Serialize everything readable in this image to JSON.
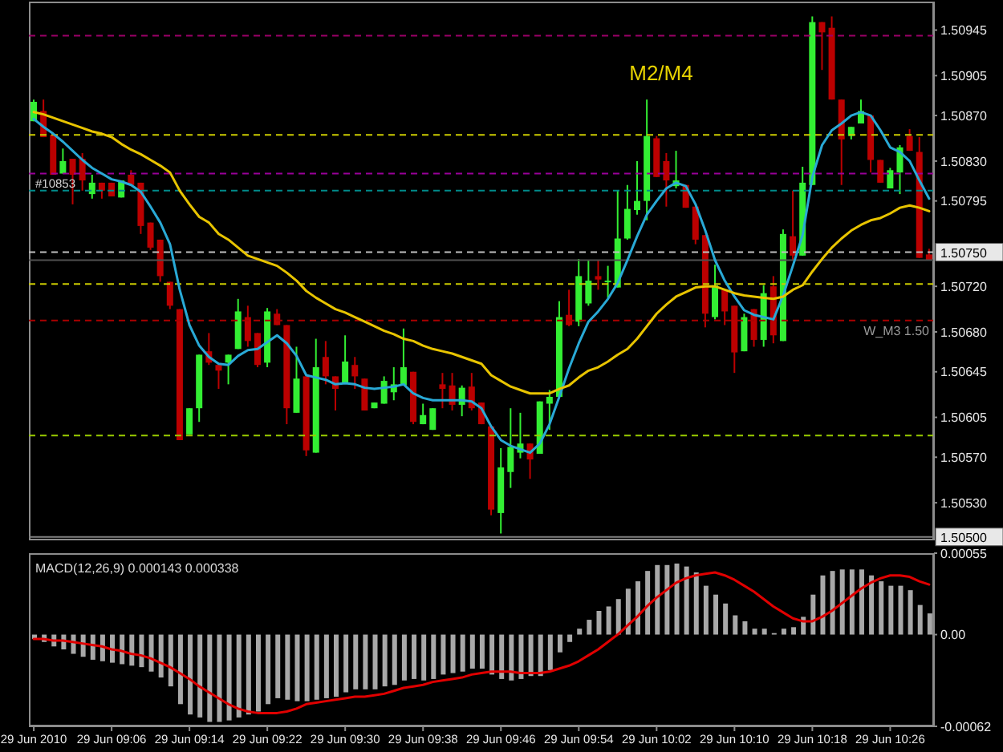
{
  "chart_data": [
    {
      "type": "candlestick",
      "tick_labels": "y",
      "ohlc": [
        [
          1.50865,
          1.50884,
          1.50865,
          1.50882
        ],
        [
          1.50874,
          1.50884,
          1.50851,
          1.50851
        ],
        [
          1.50853,
          1.50853,
          1.50818,
          1.50818
        ],
        [
          1.50819,
          1.50841,
          1.50819,
          1.5083
        ],
        [
          1.50832,
          1.50832,
          1.50792,
          1.50818
        ],
        [
          1.50832,
          1.50837,
          1.50804,
          1.50813
        ],
        [
          1.50801,
          1.50818,
          1.50797,
          1.50811
        ],
        [
          1.50811,
          1.50811,
          1.50797,
          1.50804
        ],
        [
          1.50811,
          1.50811,
          1.50799,
          1.50799
        ],
        [
          1.50798,
          1.50813,
          1.50798,
          1.50813
        ],
        [
          1.50818,
          1.50822,
          1.50809,
          1.50809
        ],
        [
          1.50811,
          1.50811,
          1.50766,
          1.50773
        ],
        [
          1.50776,
          1.50776,
          1.50752,
          1.50754
        ],
        [
          1.50761,
          1.50761,
          1.50724,
          1.50729
        ],
        [
          1.50724,
          1.50724,
          1.507,
          1.50703
        ],
        [
          1.507,
          1.507,
          1.50585,
          1.50585
        ],
        [
          1.5059,
          1.50613,
          1.5059,
          1.50613
        ],
        [
          1.50613,
          1.5066,
          1.50601,
          1.5066
        ],
        [
          1.50663,
          1.50679,
          1.50651,
          1.50653
        ],
        [
          1.50651,
          1.50651,
          1.5063,
          1.50646
        ],
        [
          1.50653,
          1.5066,
          1.50634,
          1.5066
        ],
        [
          1.50665,
          1.50709,
          1.50665,
          1.50698
        ],
        [
          1.50693,
          1.50703,
          1.50667,
          1.50672
        ],
        [
          1.50679,
          1.50679,
          1.50649,
          1.50651
        ],
        [
          1.50653,
          1.50701,
          1.50649,
          1.50698
        ],
        [
          1.50696,
          1.507,
          1.50686,
          1.50686
        ],
        [
          1.50686,
          1.50686,
          1.50599,
          1.50613
        ],
        [
          1.50609,
          1.50667,
          1.50609,
          1.50639
        ],
        [
          1.50641,
          1.50641,
          1.50571,
          1.50576
        ],
        [
          1.50574,
          1.50674,
          1.50574,
          1.50649
        ],
        [
          1.50658,
          1.50672,
          1.50634,
          1.50641
        ],
        [
          1.50641,
          1.50641,
          1.50611,
          1.5063
        ],
        [
          1.50635,
          1.50677,
          1.50635,
          1.50654
        ],
        [
          1.50651,
          1.50658,
          1.5063,
          1.50641
        ],
        [
          1.50639,
          1.50639,
          1.50611,
          1.50611
        ],
        [
          1.50613,
          1.50618,
          1.50613,
          1.50618
        ],
        [
          1.50617,
          1.50641,
          1.50617,
          1.50637
        ],
        [
          1.50627,
          1.50649,
          1.5062,
          1.50634
        ],
        [
          1.50633,
          1.50683,
          1.50633,
          1.50649
        ],
        [
          1.50645,
          1.50645,
          1.50599,
          1.50601
        ],
        [
          1.50599,
          1.50617,
          1.50599,
          1.50607
        ],
        [
          1.50594,
          1.50613,
          1.50594,
          1.50613
        ],
        [
          1.50634,
          1.50644,
          1.50613,
          1.5063
        ],
        [
          1.50633,
          1.50644,
          1.50611,
          1.50616
        ],
        [
          1.50616,
          1.50633,
          1.50606,
          1.50631
        ],
        [
          1.50632,
          1.50644,
          1.50611,
          1.50613
        ],
        [
          1.50618,
          1.50618,
          1.50599,
          1.50599
        ],
        [
          1.50597,
          1.50597,
          1.50519,
          1.50524
        ],
        [
          1.50521,
          1.50578,
          1.50503,
          1.50561
        ],
        [
          1.50557,
          1.50613,
          1.50543,
          1.50579
        ],
        [
          1.50574,
          1.50609,
          1.50569,
          1.50582
        ],
        [
          1.50582,
          1.50582,
          1.50551,
          1.50568
        ],
        [
          1.50573,
          1.50619,
          1.50573,
          1.50619
        ],
        [
          1.50617,
          1.50629,
          1.50594,
          1.50623
        ],
        [
          1.50623,
          1.50707,
          1.50623,
          1.50693
        ],
        [
          1.50695,
          1.50717,
          1.50685,
          1.50686
        ],
        [
          1.50689,
          1.50744,
          1.50685,
          1.50729
        ],
        [
          1.50705,
          1.50743,
          1.50703,
          1.50725
        ],
        [
          1.50729,
          1.50743,
          1.50717,
          1.50726
        ],
        [
          1.50724,
          1.50738,
          1.5071,
          1.50725
        ],
        [
          1.50719,
          1.50804,
          1.50719,
          1.50762
        ],
        [
          1.50762,
          1.50809,
          1.50761,
          1.50788
        ],
        [
          1.50787,
          1.5083,
          1.50783,
          1.50795
        ],
        [
          1.50795,
          1.50884,
          1.50778,
          1.50852
        ],
        [
          1.5085,
          1.50852,
          1.50816,
          1.50816
        ],
        [
          1.5083,
          1.50837,
          1.5079,
          1.50813
        ],
        [
          1.50808,
          1.50839,
          1.50806,
          1.50813
        ],
        [
          1.50809,
          1.50809,
          1.50789,
          1.50789
        ],
        [
          1.5079,
          1.5079,
          1.50757,
          1.50761
        ],
        [
          1.50765,
          1.50765,
          1.50684,
          1.50696
        ],
        [
          1.50693,
          1.50739,
          1.50691,
          1.50721
        ],
        [
          1.50717,
          1.50717,
          1.50686,
          1.50698
        ],
        [
          1.50703,
          1.50703,
          1.50644,
          1.50662
        ],
        [
          1.50663,
          1.50696,
          1.50663,
          1.50693
        ],
        [
          1.507,
          1.507,
          1.50667,
          1.50673
        ],
        [
          1.50673,
          1.50721,
          1.50667,
          1.50714
        ],
        [
          1.5072,
          1.50729,
          1.5067,
          1.50677
        ],
        [
          1.50672,
          1.5077,
          1.50672,
          1.50766
        ],
        [
          1.50764,
          1.50804,
          1.50743,
          1.50747
        ],
        [
          1.50747,
          1.50825,
          1.50747,
          1.50811
        ],
        [
          1.50809,
          1.50957,
          1.50809,
          1.50952
        ],
        [
          1.50952,
          1.50952,
          1.5091,
          1.50943
        ],
        [
          1.50947,
          1.50957,
          1.50884,
          1.50884
        ],
        [
          1.50884,
          1.50884,
          1.50809,
          1.50849
        ],
        [
          1.50852,
          1.5086,
          1.50849,
          1.5086
        ],
        [
          1.50863,
          1.50884,
          1.50863,
          1.50874
        ],
        [
          1.5087,
          1.5087,
          1.5082,
          1.50831
        ],
        [
          1.50831,
          1.50831,
          1.50811,
          1.50811
        ],
        [
          1.50806,
          1.50824,
          1.50806,
          1.50822
        ],
        [
          1.5082,
          1.50844,
          1.50801,
          1.50842
        ],
        [
          1.50852,
          1.50858,
          1.50839,
          1.50839
        ],
        [
          1.50838,
          1.50851,
          1.50745,
          1.50745
        ],
        [
          1.50748,
          1.50753,
          1.50743,
          1.50743
        ]
      ],
      "colors": [
        "#33ee33",
        "#bb0000",
        "#bb0000",
        "#33ee33",
        "#bb0000",
        "#bb0000",
        "#33ee33",
        "#bb0000",
        "#bb0000",
        "#33ee33",
        "#bb0000",
        "#bb0000",
        "#bb0000",
        "#bb0000",
        "#bb0000",
        "#bb0000",
        "#33ee33",
        "#33ee33",
        "#bb0000",
        "#bb0000",
        "#33ee33",
        "#33ee33",
        "#bb0000",
        "#bb0000",
        "#33ee33",
        "#bb0000",
        "#bb0000",
        "#33ee33",
        "#bb0000",
        "#33ee33",
        "#bb0000",
        "#bb0000",
        "#33ee33",
        "#bb0000",
        "#bb0000",
        "#33ee33",
        "#33ee33",
        "#33ee33",
        "#33ee33",
        "#bb0000",
        "#33ee33",
        "#33ee33",
        "#bb0000",
        "#bb0000",
        "#33ee33",
        "#bb0000",
        "#bb0000",
        "#bb0000",
        "#33ee33",
        "#33ee33",
        "#33ee33",
        "#bb0000",
        "#33ee33",
        "#33ee33",
        "#33ee33",
        "#bb0000",
        "#33ee33",
        "#33ee33",
        "#bb0000",
        "#33ee33",
        "#33ee33",
        "#33ee33",
        "#33ee33",
        "#33ee33",
        "#bb0000",
        "#bb0000",
        "#33ee33",
        "#bb0000",
        "#bb0000",
        "#bb0000",
        "#33ee33",
        "#bb0000",
        "#bb0000",
        "#33ee33",
        "#bb0000",
        "#33ee33",
        "#bb0000",
        "#33ee33",
        "#bb0000",
        "#33ee33",
        "#33ee33",
        "#bb0000",
        "#bb0000",
        "#bb0000",
        "#33ee33",
        "#33ee33",
        "#bb0000",
        "#bb0000",
        "#33ee33",
        "#33ee33",
        "#bb0000",
        "#bb0000",
        "#bb0000"
      ],
      "series": [
        {
          "type": "line",
          "color": "#29a9d6",
          "values": [
            1.50867,
            1.5086,
            1.50854,
            1.50847,
            1.50839,
            1.50831,
            1.50824,
            1.50819,
            1.50814,
            1.50812,
            1.50809,
            1.50803,
            1.5079,
            1.50776,
            1.50757,
            1.50717,
            1.50686,
            1.50668,
            1.50658,
            1.50652,
            1.50651,
            1.50659,
            1.50664,
            1.50665,
            1.50671,
            1.50677,
            1.5067,
            1.50659,
            1.50642,
            1.5064,
            1.50638,
            1.50634,
            1.50635,
            1.50634,
            1.50631,
            1.5063,
            1.50631,
            1.50632,
            1.50634,
            1.50626,
            1.50622,
            1.5062,
            1.5062,
            1.5062,
            1.5062,
            1.50619,
            1.50613,
            1.50597,
            1.50585,
            1.5058,
            1.50577,
            1.50574,
            1.50582,
            1.50599,
            1.50623,
            1.50648,
            1.5067,
            1.50689,
            1.50698,
            1.50709,
            1.50723,
            1.50743,
            1.50764,
            1.50783,
            1.50795,
            1.50806,
            1.50811,
            1.50808,
            1.50792,
            1.50769,
            1.50743,
            1.50725,
            1.50711,
            1.50699,
            1.50695,
            1.50693,
            1.50691,
            1.50712,
            1.50738,
            1.50765,
            1.50816,
            1.50844,
            1.50857,
            1.50863,
            1.5087,
            1.50873,
            1.5087,
            1.50857,
            1.50842,
            1.50838,
            1.5083,
            1.50813,
            1.50797
          ]
        },
        {
          "type": "line",
          "color": "#e8c400",
          "values": [
            1.50873,
            1.50871,
            1.50868,
            1.50865,
            1.50862,
            1.50859,
            1.50856,
            1.50854,
            1.50851,
            1.50845,
            1.5084,
            1.50836,
            1.50831,
            1.50826,
            1.5082,
            1.50804,
            1.50792,
            1.50781,
            1.50776,
            1.50766,
            1.50761,
            1.50754,
            1.50747,
            1.50744,
            1.50741,
            1.50738,
            1.50732,
            1.50725,
            1.50716,
            1.5071,
            1.50705,
            1.507,
            1.50697,
            1.50693,
            1.50689,
            1.50685,
            1.50681,
            1.50678,
            1.50674,
            1.50672,
            1.50668,
            1.50665,
            1.50663,
            1.50661,
            1.50658,
            1.50655,
            1.50652,
            1.50642,
            1.50637,
            1.50632,
            1.50629,
            1.50626,
            1.50626,
            1.50626,
            1.5063,
            1.50633,
            1.5064,
            1.50646,
            1.50649,
            1.50654,
            1.5066,
            1.50665,
            1.50674,
            1.50685,
            1.50696,
            1.50704,
            1.50711,
            1.50715,
            1.50719,
            1.5072,
            1.5072,
            1.50717,
            1.50714,
            1.50712,
            1.50711,
            1.5071,
            1.50709,
            1.50711,
            1.50717,
            1.50721,
            1.50733,
            1.50744,
            1.50754,
            1.50762,
            1.50769,
            1.50774,
            1.50778,
            1.5078,
            1.50784,
            1.50789,
            1.50791,
            1.50789,
            1.50786
          ]
        }
      ],
      "ylim": [
        1.50497,
        1.5097
      ],
      "yticks": [
        1.50945,
        1.50905,
        {
          "value": 1.5087,
          "label": "1.50870"
        },
        {
          "value": 1.5083,
          "label": "1.50830"
        },
        1.50795,
        {
          "value": 1.5072,
          "label": "1.50720"
        },
        {
          "value": 1.5068,
          "label": "1.50680"
        },
        1.50645,
        1.50605,
        {
          "value": 1.5057,
          "label": "1.50570"
        },
        {
          "value": 1.5053,
          "label": "1.50530"
        }
      ],
      "ref_lines": [
        {
          "axis": "y",
          "value": 1.5094,
          "color": "#990066",
          "line_style": "dashed"
        },
        {
          "axis": "y",
          "value": 1.50853,
          "color": "#cccc00",
          "line_style": "dashed"
        },
        {
          "axis": "y",
          "value": 1.50819,
          "color": "#990099",
          "line_style": "dashed"
        },
        {
          "axis": "y",
          "value": 1.50804,
          "color": "#008b8b",
          "line_style": "dashed"
        },
        {
          "axis": "y",
          "value": 1.5075,
          "label": "1.50750",
          "color": "#c0c0c0",
          "line_style": "dashed"
        },
        {
          "axis": "y",
          "value": 1.50743,
          "color": "#505050",
          "line_style": "solid"
        },
        {
          "axis": "y",
          "value": 1.50722,
          "color": "#cccc00",
          "line_style": "dashed"
        },
        {
          "axis": "y",
          "value": 1.5069,
          "label": "W_M3 1.50",
          "color": "#aa0000",
          "line_style": "dashed"
        },
        {
          "axis": "y",
          "value": 1.50589,
          "color": "#99cc00",
          "line_style": "dashed"
        },
        {
          "axis": "y",
          "value": 1.505,
          "label": "1.50500",
          "color": "#808080",
          "line_style": "solid"
        }
      ],
      "annotations": [
        "M2/M4",
        "#10853"
      ]
    },
    {
      "type": "bar",
      "title": "MACD(12,26,9) 0.000143 0.000338",
      "categories": [
        "29 Jun 2010",
        null,
        null,
        null,
        null,
        null,
        null,
        null,
        "29 Jun 09:06",
        null,
        null,
        null,
        null,
        null,
        null,
        null,
        "29 Jun 09:14",
        null,
        null,
        null,
        null,
        null,
        null,
        null,
        "29 Jun 09:22",
        null,
        null,
        null,
        null,
        null,
        null,
        null,
        "29 Jun 09:30",
        null,
        null,
        null,
        null,
        null,
        null,
        null,
        "29 Jun 09:38",
        null,
        null,
        null,
        null,
        null,
        null,
        null,
        "29 Jun 09:46",
        null,
        null,
        null,
        null,
        null,
        null,
        null,
        "29 Jun 09:54",
        null,
        null,
        null,
        null,
        null,
        null,
        null,
        "29 Jun 10:02",
        null,
        null,
        null,
        null,
        null,
        null,
        null,
        "29 Jun 10:10",
        null,
        null,
        null,
        null,
        null,
        null,
        null,
        "29 Jun 10:18",
        null,
        null,
        null,
        null,
        null,
        null,
        null,
        "29 Jun 10:26",
        null,
        null,
        null,
        null
      ],
      "series": [
        {
          "color": "#a8a8a8",
          "values": [
            -3e-05,
            -5e-05,
            -8e-05,
            -0.0001,
            -0.00013,
            -0.00015,
            -0.00017,
            -0.00018,
            -0.00019,
            -0.0002,
            -0.00021,
            -0.00022,
            -0.00025,
            -0.00029,
            -0.00035,
            -0.00047,
            -0.00054,
            -0.00056,
            -0.00059,
            -0.00059,
            -0.00058,
            -0.00056,
            -0.00054,
            -0.00052,
            -0.00047,
            -0.00043,
            -0.00044,
            -0.00045,
            -0.00045,
            -0.00044,
            -0.00043,
            -0.00042,
            -0.00039,
            -0.00037,
            -0.00037,
            -0.00037,
            -0.00035,
            -0.00034,
            -0.00031,
            -0.0003,
            -0.00031,
            -0.0003,
            -0.00027,
            -0.00026,
            -0.00025,
            -0.00023,
            -0.00023,
            -0.00027,
            -0.0003,
            -0.00031,
            -0.0003,
            -0.00028,
            -0.00028,
            -0.00024,
            -0.00012,
            -5e-05,
            4e-05,
            0.0001,
            0.00016,
            0.00019,
            0.00024,
            0.00031,
            0.00036,
            0.00043,
            0.00047,
            0.00047,
            0.00048,
            0.00046,
            0.00042,
            0.00033,
            0.00027,
            0.00021,
            0.00013,
            9e-05,
            4e-05,
            4e-05,
            1e-05,
            4e-05,
            5e-05,
            0.00012,
            0.00027,
            0.0004,
            0.00043,
            0.00044,
            0.00044,
            0.00044,
            0.0004,
            0.00036,
            0.00033,
            0.00033,
            0.0003,
            0.0002,
            0.000143
          ]
        },
        {
          "type": "line",
          "color": "#e00000",
          "values": [
            -3e-05,
            -3e-05,
            -4e-05,
            -4e-05,
            -5e-05,
            -6e-05,
            -7e-05,
            -8e-05,
            -0.0001,
            -0.00011,
            -0.00013,
            -0.00014,
            -0.00016,
            -0.00019,
            -0.00022,
            -0.00026,
            -0.0003,
            -0.00035,
            -0.00039,
            -0.00043,
            -0.00047,
            -0.0005,
            -0.00052,
            -0.00053,
            -0.00053,
            -0.00053,
            -0.00052,
            -0.0005,
            -0.00047,
            -0.00046,
            -0.00045,
            -0.00044,
            -0.00043,
            -0.00042,
            -0.00042,
            -0.00041,
            -0.0004,
            -0.00038,
            -0.00036,
            -0.00035,
            -0.00034,
            -0.00032,
            -0.00031,
            -0.0003,
            -0.00029,
            -0.00027,
            -0.00026,
            -0.00025,
            -0.00025,
            -0.00025,
            -0.00026,
            -0.00026,
            -0.00026,
            -0.00025,
            -0.00023,
            -0.00021,
            -0.00018,
            -0.00014,
            -0.0001,
            -5e-05,
            0,
            6e-05,
            0.00012,
            0.00019,
            0.00025,
            0.0003,
            0.00035,
            0.00038,
            0.0004,
            0.00041,
            0.00042,
            0.0004,
            0.00037,
            0.00033,
            0.00029,
            0.00024,
            0.00019,
            0.00015,
            0.00011,
            9e-05,
            9e-05,
            0.00012,
            0.00016,
            0.00021,
            0.00026,
            0.00031,
            0.00035,
            0.00038,
            0.0004,
            0.0004,
            0.00039,
            0.00036,
            0.000338
          ]
        }
      ],
      "ylim": [
        -0.00062,
        0.00055
      ],
      "yticks": [
        0.00055,
        {
          "value": 0,
          "label": "0.00"
        },
        -0.00062
      ]
    }
  ]
}
